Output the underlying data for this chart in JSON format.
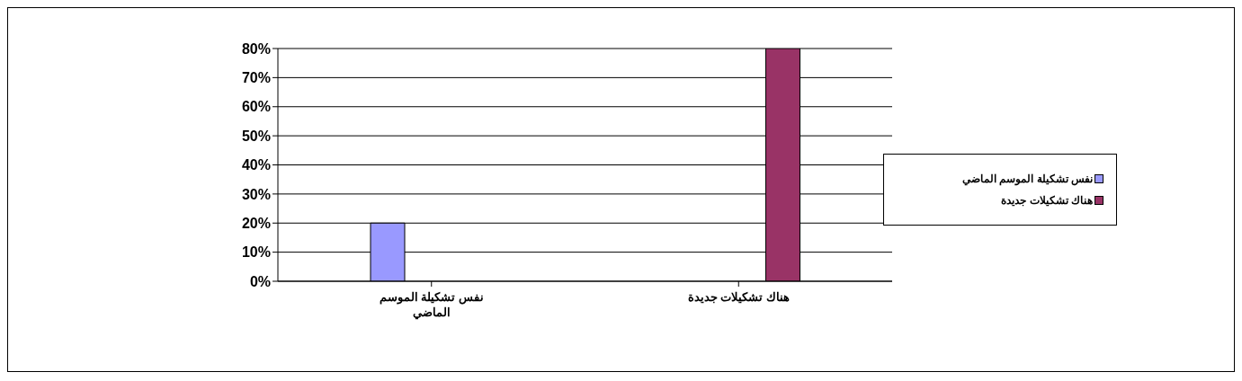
{
  "chart_data": {
    "type": "bar",
    "categories": [
      "نفس تشكيلة الموسم الماضي",
      "هناك تشكيلات جديدة"
    ],
    "series": [
      {
        "name": "نفس تشكيلة الموسم الماضي",
        "color": "#9999ff",
        "values": [
          20,
          null
        ]
      },
      {
        "name": "هناك تشكيلات جديدة",
        "color": "#993366",
        "values": [
          null,
          80
        ]
      }
    ],
    "ylim": [
      0,
      80
    ],
    "yticks": [
      {
        "value": 0,
        "label": "0%"
      },
      {
        "value": 10,
        "label": "10%"
      },
      {
        "value": 20,
        "label": "20%"
      },
      {
        "value": 30,
        "label": "30%"
      },
      {
        "value": 40,
        "label": "40%"
      },
      {
        "value": 50,
        "label": "50%"
      },
      {
        "value": 60,
        "label": "60%"
      },
      {
        "value": 70,
        "label": "70%"
      },
      {
        "value": 80,
        "label": "80%"
      }
    ],
    "grid": "y",
    "legend": "right"
  }
}
